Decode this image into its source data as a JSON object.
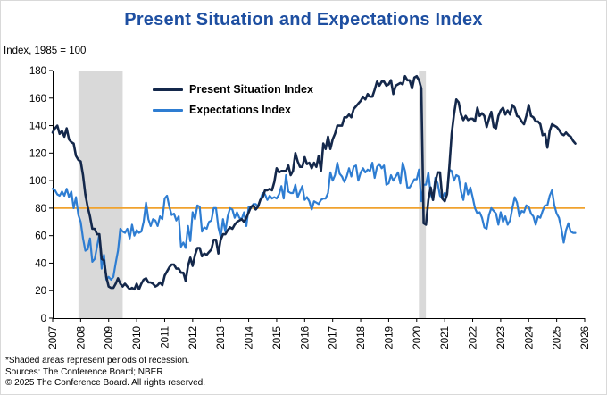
{
  "title": "Present Situation and Expectations Index",
  "y_axis_note": "Index, 1985 = 100",
  "footnotes": {
    "line1": "*Shaded areas represent periods of recession.",
    "line2": "Sources: The Conference Board;  NBER",
    "line3": "© 2025 The Conference Board. All rights reserved."
  },
  "colors": {
    "title": "#1e4fa1",
    "present_situation": "#14284b",
    "expectations": "#2e7dd2",
    "reference": "#f0a22e",
    "recession_band": "#d9d9d9",
    "axis": "#000000"
  },
  "chart_data": {
    "type": "line",
    "title": "Present Situation and Expectations Index",
    "xlabel": "",
    "ylabel": "Index, 1985 = 100",
    "ylim": [
      0,
      180
    ],
    "y_ticks": [
      0,
      20,
      40,
      60,
      80,
      100,
      120,
      140,
      160,
      180
    ],
    "x_ticks": [
      2007,
      2008,
      2009,
      2010,
      2011,
      2012,
      2013,
      2014,
      2015,
      2016,
      2017,
      2018,
      2019,
      2020,
      2021,
      2022,
      2023,
      2024,
      2025,
      2026
    ],
    "x_start": 2007.0,
    "x_end": 2026.0,
    "grid": false,
    "legend_position": "top-left-inside",
    "recession_color": "#d9d9d9",
    "recessions": [
      {
        "start": 2007.92,
        "end": 2009.5
      },
      {
        "start": 2020.08,
        "end": 2020.33
      }
    ],
    "reference_line": {
      "value": 80,
      "color": "#f0a22e"
    },
    "x_unit": "monthly, year + month fraction",
    "series": [
      {
        "name": "Expectations Index",
        "color": "#2e7dd2",
        "width": 2.2,
        "start_year": 2007,
        "start_month": 1,
        "values": [
          94,
          93,
          90,
          89,
          92,
          89,
          94,
          88,
          92,
          80,
          88,
          75,
          70,
          58,
          49,
          50,
          58,
          41,
          43,
          52,
          61,
          36,
          46,
          28,
          30,
          28,
          30,
          40,
          49,
          65,
          63,
          62,
          65,
          58,
          68,
          60,
          64,
          62,
          63,
          70,
          84,
          72,
          67,
          72,
          71,
          67,
          74,
          72,
          87,
          89,
          81,
          75,
          76,
          71,
          74,
          52,
          55,
          51,
          67,
          56,
          77,
          72,
          82,
          81,
          63,
          66,
          65,
          70,
          71,
          80,
          80,
          66,
          59,
          72,
          63,
          74,
          80,
          79,
          73,
          77,
          73,
          72,
          77,
          67,
          81,
          80,
          83,
          83,
          81,
          86,
          91,
          90,
          86,
          89,
          87,
          88,
          87,
          90,
          96,
          87,
          104,
          92,
          91,
          91,
          97,
          88,
          92,
          96,
          86,
          88,
          85,
          79,
          85,
          84,
          83,
          86,
          87,
          87,
          91,
          106,
          100,
          104,
          113,
          105,
          103,
          99,
          103,
          109,
          103,
          110,
          111,
          100,
          106,
          109,
          106,
          108,
          107,
          113,
          102,
          110,
          112,
          109,
          111,
          97,
          98,
          104,
          100,
          103,
          106,
          98,
          113,
          107,
          95,
          95,
          98,
          101,
          101,
          108,
          85,
          97,
          97,
          106,
          90,
          86,
          102,
          98,
          89,
          87,
          91,
          90,
          108,
          107,
          100,
          104,
          103,
          92,
          86,
          98,
          90,
          95,
          88,
          80,
          76,
          77,
          73,
          66,
          65,
          75,
          80,
          78,
          76,
          68,
          77,
          70,
          74,
          68,
          71,
          80,
          88,
          84,
          74,
          78,
          77,
          82,
          81,
          76,
          74,
          68,
          74,
          73,
          78,
          82,
          82,
          89,
          93,
          82,
          76,
          73,
          65,
          55,
          64,
          69,
          63,
          62,
          62
        ]
      },
      {
        "name": "Present Situation Index",
        "color": "#14284b",
        "width": 2.6,
        "start_year": 2007,
        "start_month": 1,
        "values": [
          135,
          138,
          140,
          134,
          136,
          132,
          138,
          130,
          128,
          127,
          118,
          115,
          114,
          104,
          90,
          81,
          74,
          65,
          65,
          61,
          61,
          43,
          42,
          30,
          23,
          22,
          22,
          25,
          29,
          25,
          23,
          25,
          23,
          21,
          22,
          21,
          25,
          21,
          25,
          28,
          29,
          26,
          26,
          25,
          23,
          24,
          26,
          24,
          31,
          34,
          37,
          39,
          39,
          36,
          36,
          33,
          33,
          27,
          38,
          44,
          38,
          46,
          51,
          51,
          45,
          47,
          46,
          48,
          50,
          57,
          57,
          47,
          57,
          61,
          61,
          64,
          66,
          65,
          68,
          70,
          71,
          72,
          70,
          73,
          77,
          81,
          82,
          79,
          81,
          86,
          88,
          93,
          93,
          94,
          93,
          99,
          109,
          106,
          107,
          107,
          107,
          111,
          104,
          107,
          120,
          114,
          110,
          110,
          117,
          112,
          113,
          109,
          113,
          110,
          118,
          107,
          127,
          123,
          132,
          123,
          130,
          134,
          140,
          140,
          140,
          146,
          146,
          148,
          146,
          152,
          154,
          156,
          158,
          161,
          159,
          163,
          161,
          161,
          166,
          172,
          169,
          172,
          172,
          169,
          170,
          173,
          163,
          169,
          170,
          171,
          170,
          176,
          173,
          173,
          167,
          175,
          176,
          173,
          167,
          69,
          68,
          86,
          95,
          86,
          99,
          106,
          106,
          87,
          85,
          90,
          110,
          134,
          148,
          159,
          157,
          148,
          144,
          147,
          144,
          145,
          145,
          143,
          153,
          147,
          149,
          147,
          139,
          145,
          150,
          139,
          138,
          147,
          151,
          153,
          148,
          151,
          148,
          155,
          153,
          147,
          146,
          143,
          141,
          147,
          155,
          147,
          146,
          143,
          143,
          141,
          133,
          134,
          124,
          136,
          141,
          140,
          139,
          137,
          134,
          133,
          135,
          133,
          132,
          129,
          127
        ]
      }
    ],
    "legend_order": [
      "Present Situation Index",
      "Expectations Index"
    ]
  }
}
